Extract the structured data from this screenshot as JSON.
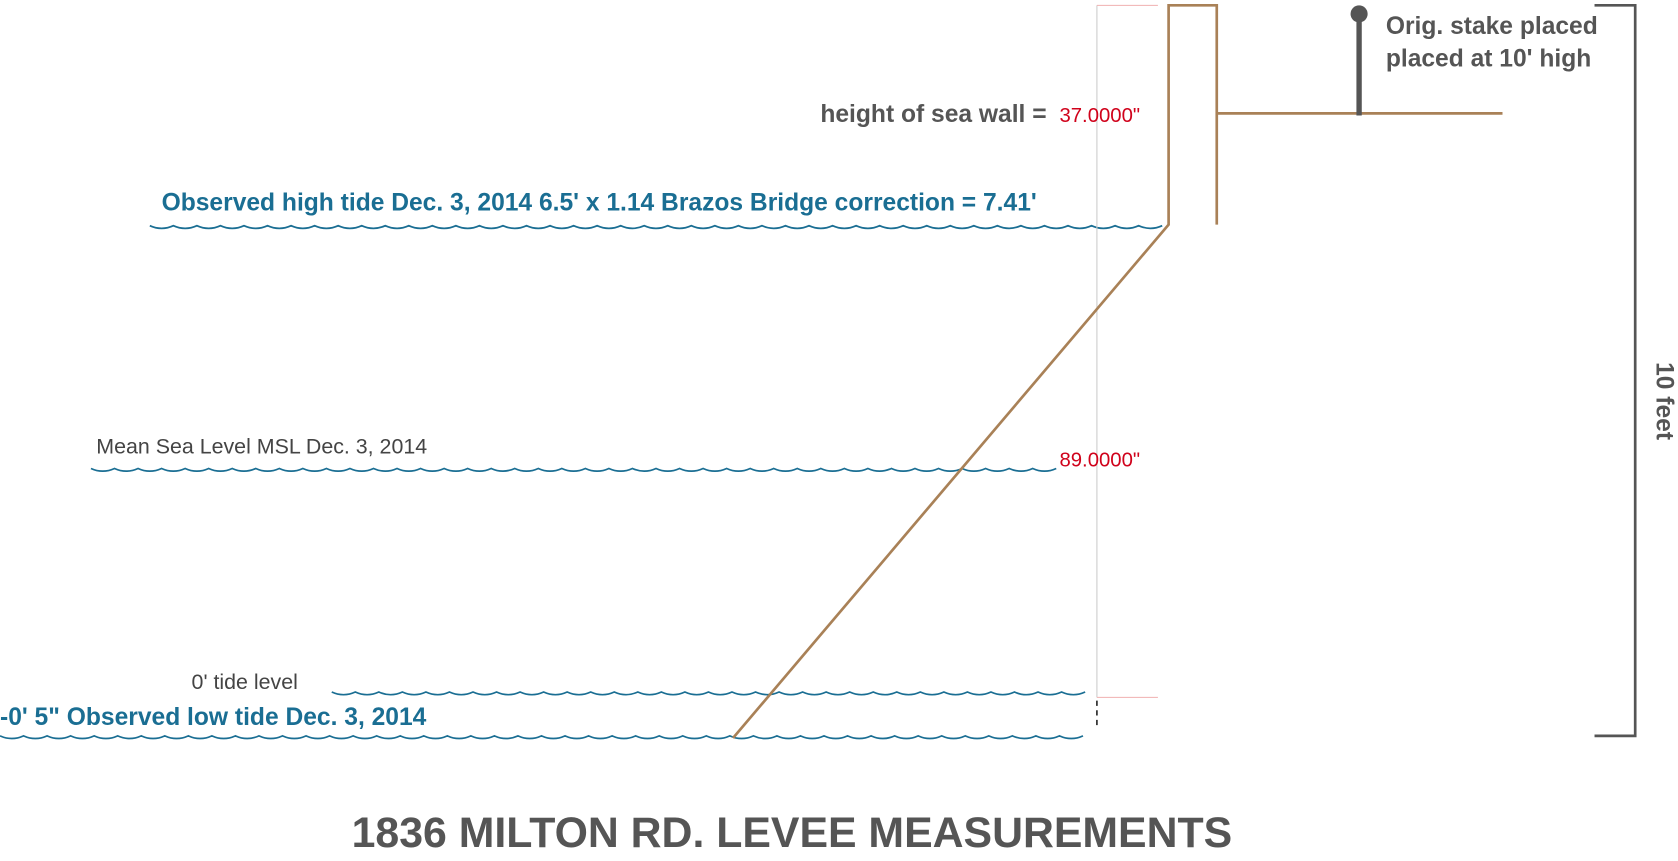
{
  "title": "1836 MILTON RD. LEVEE MEASUREMENTS",
  "levels": [
    {
      "label": "Observed high tide Dec. 3, 2014 6.5' x 1.14 Brazos Bridge correction = 7.41'"
    },
    {
      "label": "Mean Sea Level MSL Dec. 3, 2014"
    },
    {
      "label": "0' tide level"
    },
    {
      "label": "-0' 5\" Observed low tide Dec. 3, 2014"
    }
  ],
  "sea_wall_label": "height of sea wall =",
  "measurements": [
    "37.0000\"",
    "89.0000\""
  ],
  "stake_note": [
    "Orig. stake placed",
    "placed at 10' high"
  ],
  "scale_label": "10 feet"
}
